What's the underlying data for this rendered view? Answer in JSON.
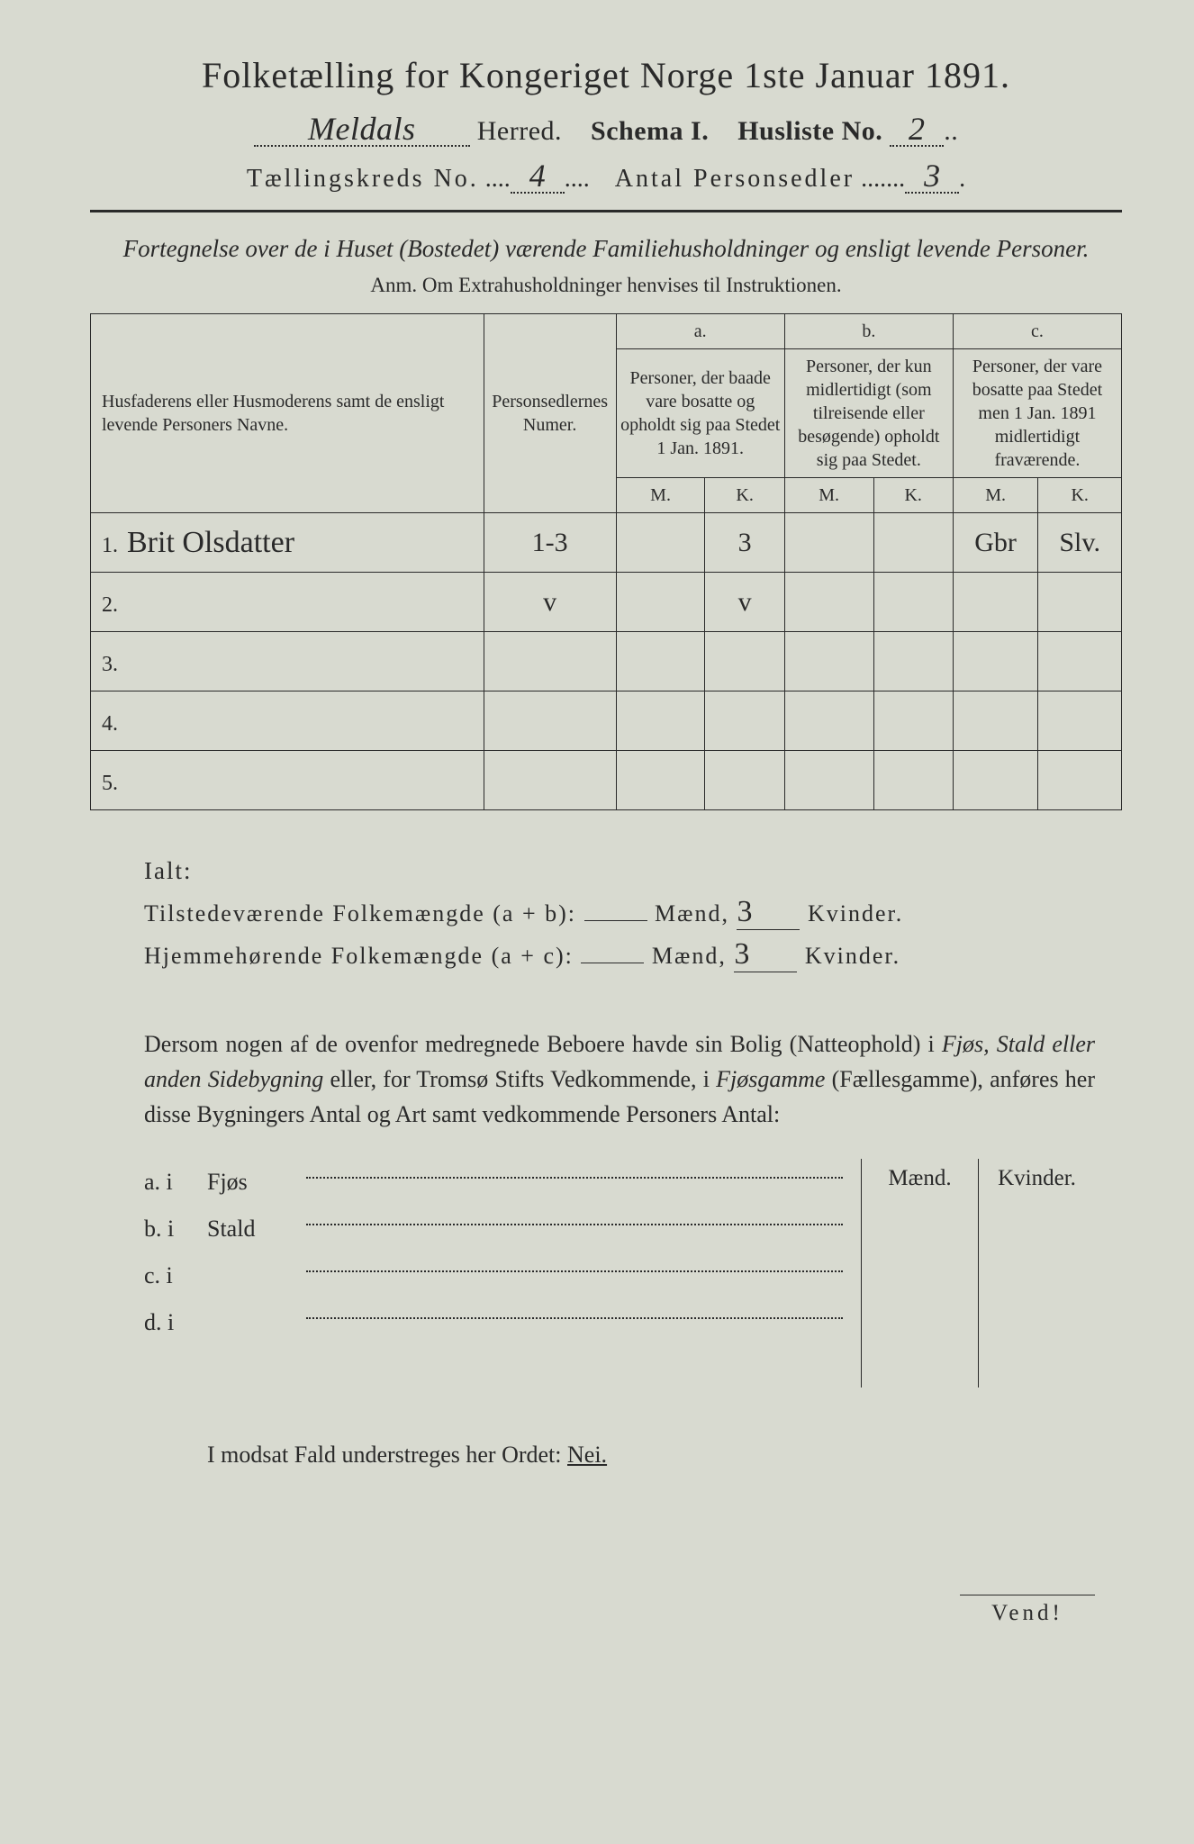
{
  "title": "Folketælling for Kongeriget Norge 1ste Januar 1891.",
  "header": {
    "herred_value": "Meldals",
    "herred_label": "Herred.",
    "schema_label": "Schema I.",
    "husliste_label": "Husliste No.",
    "husliste_value": "2",
    "kreds_label": "Tællingskreds No.",
    "kreds_value": "4",
    "antal_label": "Antal Personsedler",
    "antal_value": "3"
  },
  "fortegnelse": "Fortegnelse over de i Huset (Bostedet) værende Familiehusholdninger og ensligt levende Personer.",
  "anm": "Anm.  Om Extrahusholdninger henvises til Instruktionen.",
  "table": {
    "col1": "Husfaderens eller Husmoderens samt de ensligt levende Personers Navne.",
    "col2": "Personsedlernes Numer.",
    "abc": {
      "a": "a.",
      "b": "b.",
      "c": "c."
    },
    "col3": "Personer, der baade vare bosatte og opholdt sig paa Stedet 1 Jan. 1891.",
    "col4": "Personer, der kun midlertidigt (som tilreisende eller besøgende) opholdt sig paa Stedet.",
    "col5": "Personer, der vare bosatte paa Stedet men 1 Jan. 1891 midlertidigt fraværende.",
    "mk": {
      "m": "M.",
      "k": "K."
    },
    "rows": [
      {
        "n": "1.",
        "name": "Brit Olsdatter",
        "numer": "1-3",
        "a_m": "",
        "a_k": "3",
        "b_m": "",
        "b_k": "",
        "c_m": "Gbr",
        "c_k": "Slv."
      },
      {
        "n": "2.",
        "name": "",
        "numer": "v",
        "a_m": "",
        "a_k": "v",
        "b_m": "",
        "b_k": "",
        "c_m": "",
        "c_k": ""
      },
      {
        "n": "3.",
        "name": "",
        "numer": "",
        "a_m": "",
        "a_k": "",
        "b_m": "",
        "b_k": "",
        "c_m": "",
        "c_k": ""
      },
      {
        "n": "4.",
        "name": "",
        "numer": "",
        "a_m": "",
        "a_k": "",
        "b_m": "",
        "b_k": "",
        "c_m": "",
        "c_k": ""
      },
      {
        "n": "5.",
        "name": "",
        "numer": "",
        "a_m": "",
        "a_k": "",
        "b_m": "",
        "b_k": "",
        "c_m": "",
        "c_k": ""
      }
    ]
  },
  "ialt": {
    "label": "Ialt:",
    "line1_a": "Tilstedeværende Folkemængde (a + b):",
    "line2_a": "Hjemmehørende Folkemængde (a + c):",
    "maend": "Mænd,",
    "kvinder": "Kvinder.",
    "v1_m": "",
    "v1_k": "3",
    "v2_m": "",
    "v2_k": "3"
  },
  "dersom": {
    "p1a": "Dersom nogen af de ovenfor medregnede Beboere havde sin Bolig (Natteophold) i ",
    "p1b": "Fjøs, Stald eller anden Sidebygning",
    "p1c": " eller, for Tromsø Stifts Vedkommende, i ",
    "p1d": "Fjøsgamme",
    "p1e": " (Fællesgamme), anføres her disse Bygningers Antal og Art samt vedkommende Personers Antal:"
  },
  "abrows": [
    {
      "lab": "a.  i",
      "txt": "Fjøs"
    },
    {
      "lab": "b.  i",
      "txt": "Stald"
    },
    {
      "lab": "c.  i",
      "txt": ""
    },
    {
      "lab": "d.  i",
      "txt": ""
    }
  ],
  "mkhead": {
    "m": "Mænd.",
    "k": "Kvinder."
  },
  "modsat": {
    "a": "I modsat Fald understreges her Ordet: ",
    "nei": "Nei."
  },
  "vend": "Vend!"
}
